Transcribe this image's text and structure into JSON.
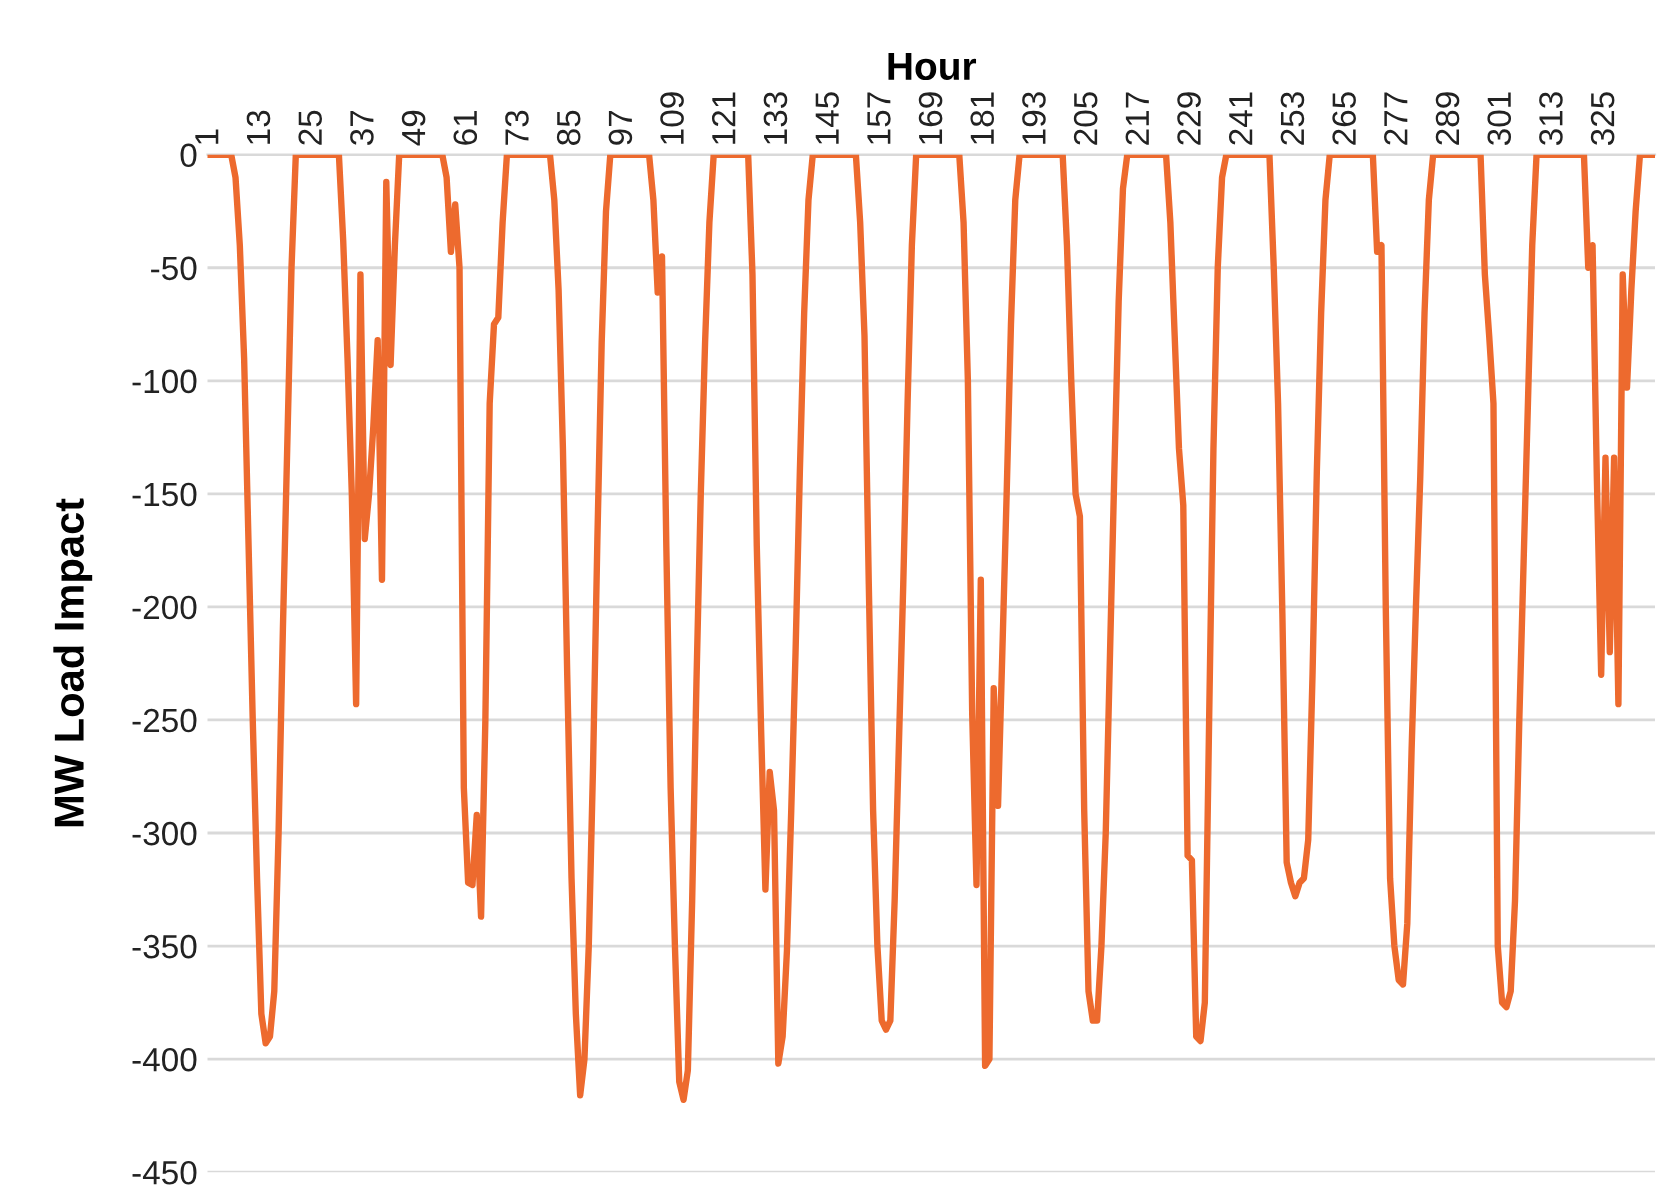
{
  "chart_data": {
    "type": "line",
    "xlabel": "Hour",
    "ylabel": "MW Load Impact",
    "xlim": [
      0.5,
      336.5
    ],
    "xticks": [
      1,
      13,
      25,
      37,
      49,
      61,
      73,
      85,
      97,
      109,
      121,
      133,
      145,
      157,
      169,
      181,
      193,
      205,
      217,
      229,
      241,
      253,
      265,
      277,
      289,
      301,
      313,
      325
    ],
    "ylim": [
      -450,
      0
    ],
    "yticks": [
      0,
      -50,
      -100,
      -150,
      -200,
      -250,
      -300,
      -350,
      -400,
      -450
    ],
    "grid": "y",
    "marker": "none",
    "line_style": "solid",
    "series": [
      {
        "color": "#ed6a2e",
        "x": [
          1,
          6,
          7,
          8,
          9,
          10,
          11,
          12,
          13,
          14,
          15,
          16,
          17,
          18,
          19,
          20,
          21,
          31,
          32,
          33,
          34,
          35,
          36,
          37,
          38,
          39,
          40,
          41,
          42,
          43,
          44,
          45,
          55,
          56,
          57,
          58,
          59,
          60,
          61,
          62,
          63,
          64,
          65,
          66,
          67,
          68,
          69,
          70,
          80,
          81,
          82,
          83,
          84,
          85,
          86,
          87,
          88,
          89,
          90,
          91,
          92,
          93,
          94,
          103,
          104,
          105,
          106,
          107,
          108,
          109,
          110,
          111,
          112,
          113,
          114,
          115,
          116,
          117,
          118,
          126,
          127,
          128,
          129,
          130,
          131,
          132,
          133,
          134,
          135,
          136,
          137,
          138,
          139,
          140,
          141,
          151,
          152,
          153,
          154,
          155,
          156,
          157,
          158,
          159,
          160,
          161,
          162,
          163,
          164,
          165,
          175,
          176,
          177,
          178,
          179,
          180,
          181,
          182,
          183,
          184,
          185,
          186,
          187,
          188,
          189,
          199,
          200,
          201,
          202,
          203,
          204,
          205,
          206,
          207,
          208,
          209,
          210,
          211,
          212,
          213,
          214,
          223,
          224,
          225,
          226,
          227,
          228,
          229,
          230,
          231,
          232,
          233,
          234,
          235,
          236,
          237,
          247,
          248,
          249,
          250,
          251,
          252,
          253,
          254,
          255,
          256,
          257,
          258,
          259,
          260,
          261,
          271,
          272,
          273,
          274,
          275,
          276,
          277,
          278,
          279,
          280,
          281,
          282,
          283,
          284,
          285,
          296,
          297,
          298,
          299,
          300,
          301,
          302,
          303,
          304,
          305,
          306,
          307,
          308,
          309,
          320,
          321,
          322,
          323,
          324,
          325,
          326,
          327,
          328,
          329,
          330,
          331,
          332,
          333,
          336
        ],
        "values": [
          0,
          0,
          -10,
          -40,
          -90,
          -170,
          -250,
          -320,
          -380,
          -393,
          -390,
          -370,
          -300,
          -210,
          -130,
          -50,
          0,
          0,
          -38,
          -90,
          -150,
          -243,
          -53,
          -170,
          -150,
          -120,
          -82,
          -188,
          -12,
          -93,
          -40,
          0,
          0,
          -10,
          -43,
          -22,
          -50,
          -280,
          -322,
          -323,
          -292,
          -337,
          -250,
          -110,
          -75,
          -72,
          -30,
          0,
          0,
          -20,
          -60,
          -130,
          -230,
          -320,
          -380,
          -416,
          -400,
          -350,
          -270,
          -170,
          -83,
          -25,
          0,
          0,
          -20,
          -61,
          -45,
          -173,
          -280,
          -350,
          -410,
          -418,
          -405,
          -330,
          -233,
          -150,
          -83,
          -30,
          0,
          0,
          -53,
          -173,
          -254,
          -325,
          -273,
          -290,
          -402,
          -390,
          -352,
          -290,
          -220,
          -140,
          -70,
          -20,
          0,
          0,
          -30,
          -80,
          -190,
          -290,
          -350,
          -383,
          -387,
          -383,
          -330,
          -260,
          -190,
          -110,
          -40,
          0,
          0,
          -30,
          -100,
          -247,
          -323,
          -188,
          -403,
          -400,
          -236,
          -288,
          -220,
          -150,
          -75,
          -20,
          0,
          0,
          -40,
          -100,
          -150,
          -160,
          -290,
          -370,
          -383,
          -383,
          -350,
          -300,
          -220,
          -140,
          -65,
          -15,
          0,
          0,
          -30,
          -80,
          -130,
          -155,
          -310,
          -312,
          -390,
          -392,
          -375,
          -250,
          -130,
          -50,
          -10,
          0,
          0,
          -50,
          -110,
          -203,
          -313,
          -322,
          -328,
          -322,
          -320,
          -303,
          -230,
          -140,
          -70,
          -20,
          0,
          0,
          -43,
          -40,
          -200,
          -320,
          -350,
          -365,
          -367,
          -340,
          -263,
          -200,
          -143,
          -70,
          -20,
          0,
          0,
          -53,
          -80,
          -110,
          -350,
          -375,
          -377,
          -370,
          -330,
          -250,
          -180,
          -110,
          -40,
          0,
          0,
          -50,
          -40,
          -143,
          -230,
          -134,
          -220,
          -134,
          -243,
          -53,
          -103,
          -60,
          -25,
          0,
          0
        ]
      }
    ]
  }
}
